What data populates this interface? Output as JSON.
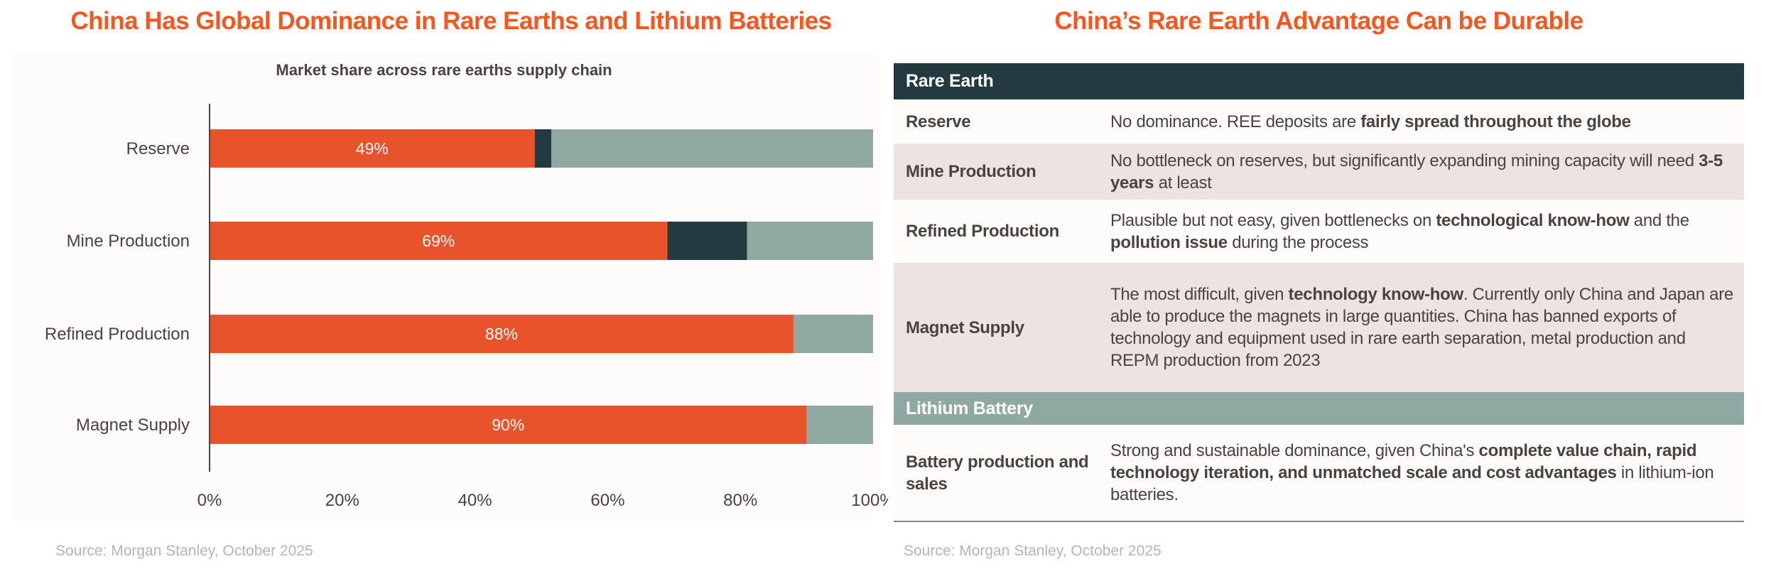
{
  "left": {
    "title": "China Has Global Dominance in Rare Earths and Lithium Batteries",
    "source": "Source: Morgan Stanley, October 2025"
  },
  "chart_data": {
    "type": "bar",
    "orientation": "horizontal",
    "stacked": true,
    "title": "Market share across rare earths supply chain",
    "categories": [
      "Reserve",
      "Mine Production",
      "Refined Production",
      "Magnet Supply"
    ],
    "series": [
      {
        "values": [
          49,
          69,
          88,
          90
        ],
        "color": "#e8532b",
        "labels": [
          "49%",
          "69%",
          "88%",
          "90%"
        ]
      },
      {
        "values": [
          2.5,
          12,
          0,
          0
        ],
        "color": "#233a40"
      },
      {
        "values": [
          48.5,
          19,
          12,
          10
        ],
        "color": "#8fa8a2"
      }
    ],
    "xlim": [
      0,
      100
    ],
    "xticks": [
      "0%",
      "20%",
      "40%",
      "60%",
      "80%",
      "100%"
    ],
    "grid": false,
    "legend": "none"
  },
  "right": {
    "title": "China’s Rare Earth Advantage Can be Durable",
    "source": "Source: Morgan Stanley, October 2025",
    "sections": [
      {
        "header": "Rare Earth",
        "rows": [
          {
            "label": "Reserve",
            "parts": [
              [
                "No dominance. REE deposits are ",
                false
              ],
              [
                "fairly spread throughout the globe",
                true
              ]
            ]
          },
          {
            "label": "Mine Production",
            "parts": [
              [
                "No bottleneck on reserves, but significantly expanding mining capacity will need ",
                false
              ],
              [
                "3-5 years",
                true
              ],
              [
                " at least",
                false
              ]
            ]
          },
          {
            "label": "Refined Production",
            "parts": [
              [
                "Plausible but not easy, given bottlenecks on ",
                false
              ],
              [
                "technological know-how",
                true
              ],
              [
                " and the ",
                false
              ],
              [
                "pollution issue",
                true
              ],
              [
                " during the process",
                false
              ]
            ]
          },
          {
            "label": "Magnet Supply",
            "parts": [
              [
                "The most difficult, given ",
                false
              ],
              [
                "technology know-how",
                true
              ],
              [
                ". Currently only China and Japan are able to produce the magnets in large quantities. China has banned exports of technology and equipment used in rare earth separation, metal production and REPM production from 2023",
                false
              ]
            ]
          }
        ]
      },
      {
        "header": "Lithium Battery",
        "rows": [
          {
            "label": "Battery production and sales",
            "parts": [
              [
                "Strong and sustainable dominance, given China's ",
                false
              ],
              [
                "complete value chain, rapid technology iteration, and unmatched scale and cost advantages",
                true
              ],
              [
                " in lithium-ion batteries.",
                false
              ]
            ]
          }
        ]
      }
    ]
  }
}
